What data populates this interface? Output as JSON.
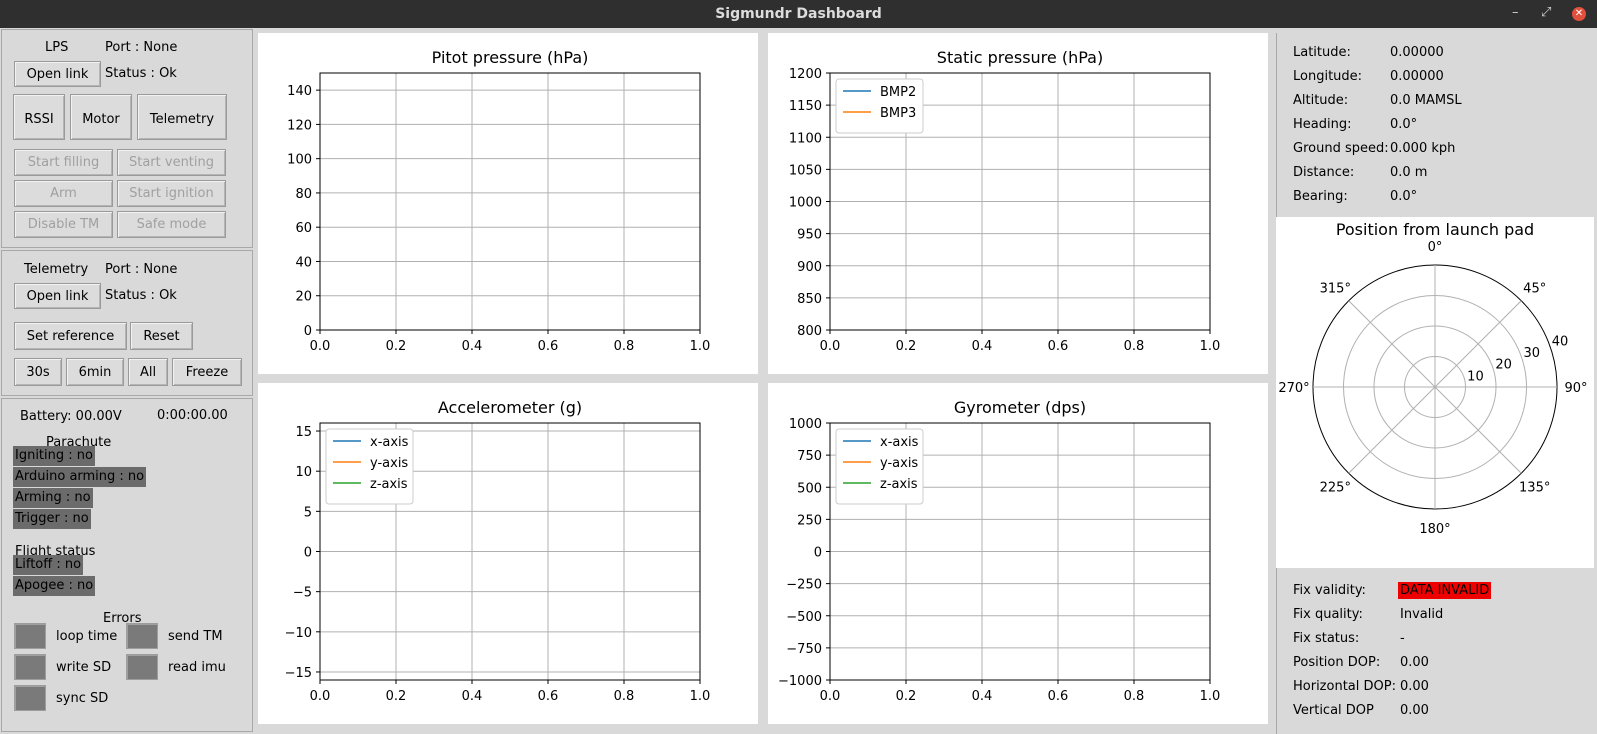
{
  "window": {
    "title": "Sigmundr Dashboard",
    "minimize": "–",
    "maximize": "⤢",
    "close": "✕"
  },
  "lps": {
    "label": "LPS",
    "port": "Port : None",
    "open_link": "Open link",
    "status": "Status : Ok",
    "rssi": "RSSI",
    "motor": "Motor",
    "telemetry": "Telemetry",
    "start_filling": "Start filling",
    "start_venting": "Start venting",
    "arm": "Arm",
    "start_ignition": "Start ignition",
    "disable_tm": "Disable TM",
    "safe_mode": "Safe mode"
  },
  "telemetry": {
    "label": "Telemetry",
    "port": "Port : None",
    "open_link": "Open link",
    "status": "Status : Ok",
    "set_reference": "Set reference",
    "reset": "Reset",
    "btn_30s": "30s",
    "btn_6min": "6min",
    "btn_all": "All",
    "freeze": "Freeze"
  },
  "status": {
    "battery": "Battery: 00.00V",
    "clock": "0:00:00.00",
    "parachute_title": "Parachute",
    "igniting": "Igniting : no",
    "arduino_arming": "Arduino arming : no",
    "arming": "Arming : no",
    "trigger": "Trigger : no",
    "flight_title": "Flight status",
    "liftoff": "Liftoff : no",
    "apogee": "Apogee : no",
    "errors_title": "Errors",
    "err_loop_time": "loop time",
    "err_send_tm": "send TM",
    "err_write_sd": "write SD",
    "err_read_imu": "read imu",
    "err_sync_sd": "sync SD"
  },
  "gps": {
    "latitude_label": "Latitude:",
    "latitude": "0.00000",
    "longitude_label": "Longitude:",
    "longitude": "0.00000",
    "altitude_label": "Altitude:",
    "altitude": "0.0 MAMSL",
    "heading_label": "Heading:",
    "heading": "0.0°",
    "ground_speed_label": "Ground speed:",
    "ground_speed": "0.000 kph",
    "distance_label": "Distance:",
    "distance": "0.0 m",
    "bearing_label": "Bearing:",
    "bearing": "0.0°",
    "fix_validity_label": "Fix validity:",
    "fix_validity": "DATA INVALID",
    "fix_quality_label": "Fix quality:",
    "fix_quality": "Invalid",
    "fix_status_label": "Fix status:",
    "fix_status": "-",
    "pdop_label": "Position DOP:",
    "pdop": "0.00",
    "hdop_label": "Horizontal DOP:",
    "hdop": "0.00",
    "vdop_label": "Vertical DOP",
    "vdop": "0.00"
  },
  "colors": {
    "series1": "#1f77b4",
    "series2": "#ff7f0e",
    "series3": "#2ca02c",
    "invalid": "#ee0000"
  },
  "chart_data": [
    {
      "id": "pitot",
      "type": "line",
      "title": "Pitot pressure (hPa)",
      "xlim": [
        0,
        1
      ],
      "ylim": [
        0,
        150
      ],
      "xticks": [
        0,
        0.2,
        0.4,
        0.6,
        0.8,
        1
      ],
      "xticklabels": [
        "0.0",
        "0.2",
        "0.4",
        "0.6",
        "0.8",
        "1.0"
      ],
      "yticks": [
        0,
        20,
        40,
        60,
        80,
        100,
        120,
        140
      ],
      "yticklabels": [
        "0",
        "20",
        "40",
        "60",
        "80",
        "100",
        "120",
        "140"
      ],
      "grid": true,
      "series": []
    },
    {
      "id": "static",
      "type": "line",
      "title": "Static pressure (hPa)",
      "xlim": [
        0,
        1
      ],
      "ylim": [
        800,
        1200
      ],
      "xticks": [
        0,
        0.2,
        0.4,
        0.6,
        0.8,
        1
      ],
      "xticklabels": [
        "0.0",
        "0.2",
        "0.4",
        "0.6",
        "0.8",
        "1.0"
      ],
      "yticks": [
        800,
        850,
        900,
        950,
        1000,
        1050,
        1100,
        1150,
        1200
      ],
      "yticklabels": [
        "800",
        "850",
        "900",
        "950",
        "1000",
        "1050",
        "1100",
        "1150",
        "1200"
      ],
      "grid": true,
      "legend": "top-left",
      "series": [
        {
          "name": "BMP2",
          "x": [],
          "y": []
        },
        {
          "name": "BMP3",
          "x": [],
          "y": []
        }
      ]
    },
    {
      "id": "accel",
      "type": "line",
      "title": "Accelerometer (g)",
      "xlim": [
        0,
        1
      ],
      "ylim": [
        -16,
        16
      ],
      "xticks": [
        0,
        0.2,
        0.4,
        0.6,
        0.8,
        1
      ],
      "xticklabels": [
        "0.0",
        "0.2",
        "0.4",
        "0.6",
        "0.8",
        "1.0"
      ],
      "yticks": [
        -15,
        -10,
        -5,
        0,
        5,
        10,
        15
      ],
      "yticklabels": [
        "−15",
        "−10",
        "−5",
        "0",
        "5",
        "10",
        "15"
      ],
      "grid": true,
      "legend": "top-left",
      "series": [
        {
          "name": "x-axis",
          "x": [],
          "y": []
        },
        {
          "name": "y-axis",
          "x": [],
          "y": []
        },
        {
          "name": "z-axis",
          "x": [],
          "y": []
        }
      ]
    },
    {
      "id": "gyro",
      "type": "line",
      "title": "Gyrometer (dps)",
      "xlim": [
        0,
        1
      ],
      "ylim": [
        -1000,
        1000
      ],
      "xticks": [
        0,
        0.2,
        0.4,
        0.6,
        0.8,
        1
      ],
      "xticklabels": [
        "0.0",
        "0.2",
        "0.4",
        "0.6",
        "0.8",
        "1.0"
      ],
      "yticks": [
        -1000,
        -750,
        -500,
        -250,
        0,
        250,
        500,
        750,
        1000
      ],
      "yticklabels": [
        "−1000",
        "−750",
        "−500",
        "−250",
        "0",
        "250",
        "500",
        "750",
        "1000"
      ],
      "grid": true,
      "legend": "top-left",
      "series": [
        {
          "name": "x-axis",
          "x": [],
          "y": []
        },
        {
          "name": "y-axis",
          "x": [],
          "y": []
        },
        {
          "name": "z-axis",
          "x": [],
          "y": []
        }
      ]
    },
    {
      "id": "polar",
      "type": "scatter",
      "title": "Position from launch pad",
      "rlim": [
        0,
        40
      ],
      "rticks": [
        10,
        20,
        30,
        40
      ],
      "rticklabels": [
        "10",
        "20",
        "30",
        "40"
      ],
      "thetaticks": [
        0,
        45,
        90,
        135,
        180,
        225,
        270,
        315
      ],
      "thetaticklabels": [
        "0°",
        "45°",
        "90°",
        "135°",
        "180°",
        "225°",
        "270°",
        "315°"
      ],
      "grid": true,
      "series": []
    }
  ]
}
